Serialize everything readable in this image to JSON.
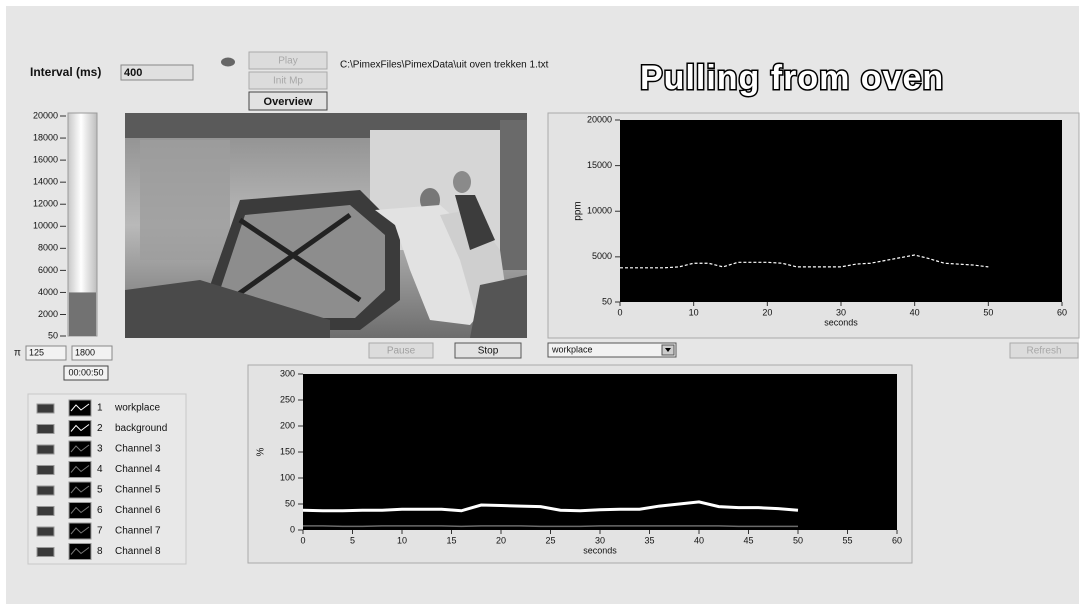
{
  "title": "Pulling from oven",
  "controls": {
    "interval_label": "Interval (ms)",
    "interval_value": "400",
    "play": "Play",
    "init": "Init Mp",
    "overview": "Overview",
    "file_path": "C:\\PimexFiles\\PimexData\\uit oven trekken 1.txt",
    "pi_label": "π",
    "pi_value": "125",
    "max_value": "1800",
    "time": "00:00:50",
    "pause": "Pause",
    "stop": "Stop",
    "refresh": "Refresh"
  },
  "gauge": {
    "value": 4000,
    "ylim": [
      50,
      20000
    ],
    "yticks": [
      50,
      2000,
      4000,
      6000,
      8000,
      10000,
      12000,
      14000,
      16000,
      18000,
      20000
    ]
  },
  "chart_data": [
    {
      "type": "line",
      "ylabel": "ppm",
      "xlabel": "seconds",
      "x": [
        0,
        2,
        4,
        6,
        8,
        10,
        12,
        14,
        16,
        18,
        20,
        22,
        24,
        26,
        28,
        30,
        32,
        34,
        36,
        38,
        40,
        42,
        44,
        46,
        48,
        50
      ],
      "series": [
        {
          "name": "workplace",
          "color": "#ffffff",
          "values": [
            3800,
            3800,
            3800,
            3800,
            3900,
            4300,
            4300,
            3900,
            4400,
            4400,
            4400,
            4300,
            3900,
            3900,
            3900,
            3900,
            4200,
            4300,
            4600,
            4900,
            5200,
            4800,
            4300,
            4200,
            4100,
            3900
          ]
        }
      ],
      "xlim": [
        0,
        60
      ],
      "xticks": [
        0,
        10,
        20,
        30,
        40,
        50,
        60
      ],
      "ylim": [
        50,
        20000
      ],
      "yticks": [
        50,
        5000,
        10000,
        15000,
        20000
      ]
    },
    {
      "type": "line",
      "ylabel": "%",
      "xlabel": "seconds",
      "x": [
        0,
        2,
        4,
        6,
        8,
        10,
        12,
        14,
        16,
        18,
        20,
        22,
        24,
        26,
        28,
        30,
        32,
        34,
        36,
        38,
        40,
        42,
        44,
        46,
        48,
        50
      ],
      "series": [
        {
          "name": "workplace",
          "color": "#ffffff",
          "values": [
            38,
            37,
            37,
            38,
            38,
            40,
            40,
            40,
            37,
            48,
            47,
            46,
            45,
            38,
            37,
            39,
            40,
            40,
            46,
            50,
            54,
            45,
            43,
            43,
            41,
            38
          ]
        },
        {
          "name": "background",
          "color": "#6a6a6a",
          "values": [
            8,
            8,
            7,
            7,
            8,
            8,
            8,
            8,
            7,
            8,
            8,
            8,
            7,
            7,
            7,
            8,
            8,
            8,
            8,
            8,
            8,
            8,
            7,
            7,
            7,
            7
          ]
        }
      ],
      "xlim": [
        0,
        60
      ],
      "xticks": [
        0,
        5,
        10,
        15,
        20,
        25,
        30,
        35,
        40,
        45,
        50,
        55,
        60
      ],
      "ylim": [
        0,
        300
      ],
      "yticks": [
        0,
        50,
        100,
        150,
        200,
        250,
        300
      ]
    }
  ],
  "legend": {
    "numbers": [
      "1",
      "2",
      "3",
      "4",
      "5",
      "6",
      "7",
      "8"
    ],
    "channels": [
      "Channel 3",
      "Channel 4",
      "Channel 5",
      "Channel 6",
      "Channel 7",
      "Channel 8"
    ]
  }
}
